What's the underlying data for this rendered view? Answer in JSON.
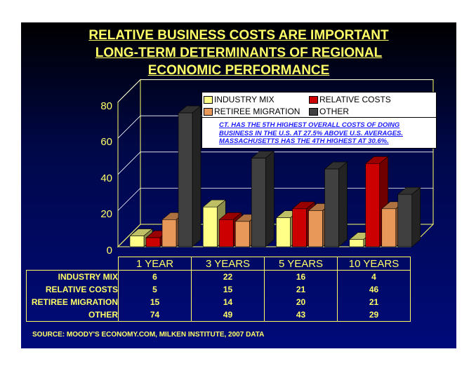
{
  "title": [
    "RELATIVE BUSINESS COSTS ARE IMPORTANT",
    "LONG-TERM DETERMINANTS OF REGIONAL",
    "ECONOMIC PERFORMANCE"
  ],
  "note": "CT. HAS THE 5TH HIGHEST OVERALL COSTS OF DOING BUSINESS IN THE U.S. AT 27.5% ABOVE U.S. AVERAGES. MASSACHUSETTS HAS THE 4TH HIGHEST AT 30.6%.",
  "source": "SOURCE: MOODY'S ECONOMY.COM, MILKEN INSTITUTE, 2007 DATA",
  "chart_data": {
    "type": "bar",
    "categories": [
      "1 YEAR",
      "3 YEARS",
      "5 YEARS",
      "10 YEARS"
    ],
    "series": [
      {
        "name": "INDUSTRY MIX",
        "values": [
          6,
          22,
          16,
          4
        ],
        "color": "#ffff88"
      },
      {
        "name": "RELATIVE COSTS",
        "values": [
          5,
          15,
          21,
          46
        ],
        "color": "#cc0000"
      },
      {
        "name": "RETIREE MIGRATION",
        "values": [
          15,
          14,
          20,
          21
        ],
        "color": "#e89858"
      },
      {
        "name": "OTHER",
        "values": [
          74,
          49,
          43,
          29
        ],
        "color": "#404040"
      }
    ],
    "yticks": [
      "0",
      "20",
      "40",
      "60",
      "80"
    ],
    "ylim": [
      0,
      80
    ],
    "legend": "top-right"
  }
}
